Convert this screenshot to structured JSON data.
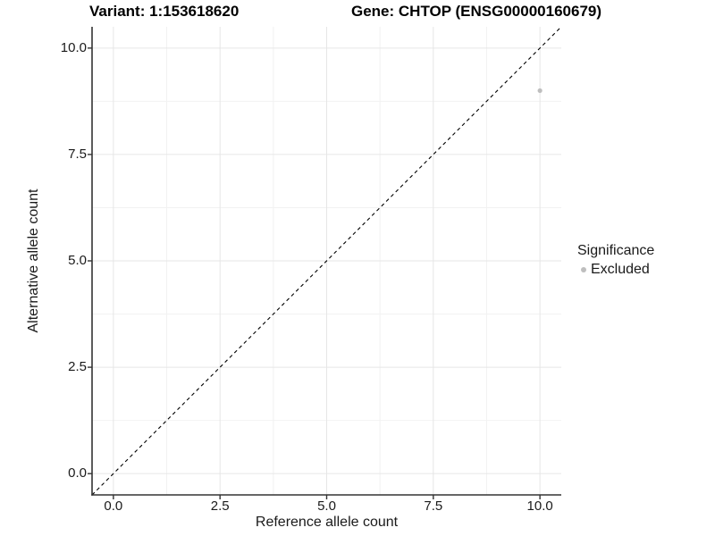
{
  "chart_data": {
    "type": "scatter",
    "title_variant": "Variant: 1:153618620",
    "title_gene": "Gene: CHTOP (ENSG00000160679)",
    "xlabel": "Reference allele count",
    "ylabel": "Alternative allele count",
    "xlim": [
      -0.5,
      10.5
    ],
    "ylim": [
      -0.5,
      10.5
    ],
    "x_ticks": [
      0.0,
      2.5,
      5.0,
      7.5,
      10.0
    ],
    "y_ticks": [
      0.0,
      2.5,
      5.0,
      7.5,
      10.0
    ],
    "x_tick_labels": [
      "0.0",
      "2.5",
      "5.0",
      "7.5",
      "10.0"
    ],
    "y_tick_labels": [
      "0.0",
      "2.5",
      "5.0",
      "7.5",
      "10.0"
    ],
    "x_minor_ticks": [
      1.25,
      3.75,
      6.25,
      8.75
    ],
    "y_minor_ticks": [
      1.25,
      3.75,
      6.25,
      8.75
    ],
    "grid": true,
    "identity_line": {
      "type": "y=x",
      "linetype": "dashed",
      "color": "#000000"
    },
    "series": [
      {
        "name": "Excluded",
        "color": "#bebebe",
        "points": [
          {
            "x": 10,
            "y": 9
          }
        ]
      }
    ],
    "legend": {
      "title": "Significance",
      "position": "right",
      "entries": [
        {
          "label": "Excluded",
          "color": "#bebebe"
        }
      ]
    }
  },
  "colors": {
    "background": "#ffffff",
    "grid_major": "#e6e6e6",
    "grid_minor": "#f2f2f2",
    "axis_line": "#333333",
    "tick_mark": "#333333",
    "tick_label": "#1a1a1a",
    "point": "#bebebe",
    "dashed_line": "#000000"
  }
}
